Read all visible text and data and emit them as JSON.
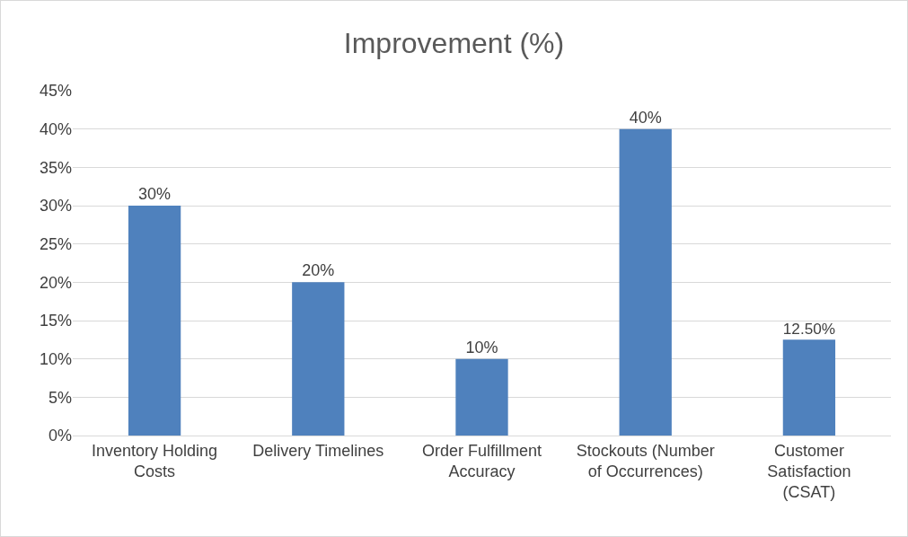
{
  "chart_data": {
    "type": "bar",
    "title": "Improvement (%)",
    "categories": [
      "Inventory Holding Costs",
      "Delivery Timelines",
      "Order Fulfillment Accuracy",
      "Stockouts (Number of Occurrences)",
      "Customer Satisfaction (CSAT)"
    ],
    "values": [
      30,
      20,
      10,
      40,
      12.5
    ],
    "value_labels": [
      "30%",
      "20%",
      "10%",
      "40%",
      "12.50%"
    ],
    "color": "#4f81bd",
    "ylim": [
      0,
      45
    ],
    "yticks": [
      {
        "value": 0,
        "label": "0%"
      },
      {
        "value": 5,
        "label": "5%"
      },
      {
        "value": 10,
        "label": "10%"
      },
      {
        "value": 15,
        "label": "15%"
      },
      {
        "value": 20,
        "label": "20%"
      },
      {
        "value": 25,
        "label": "25%"
      },
      {
        "value": 30,
        "label": "30%"
      },
      {
        "value": 35,
        "label": "35%"
      },
      {
        "value": 40,
        "label": "40%"
      },
      {
        "value": 45,
        "label": "45%"
      }
    ],
    "grid": "y"
  }
}
